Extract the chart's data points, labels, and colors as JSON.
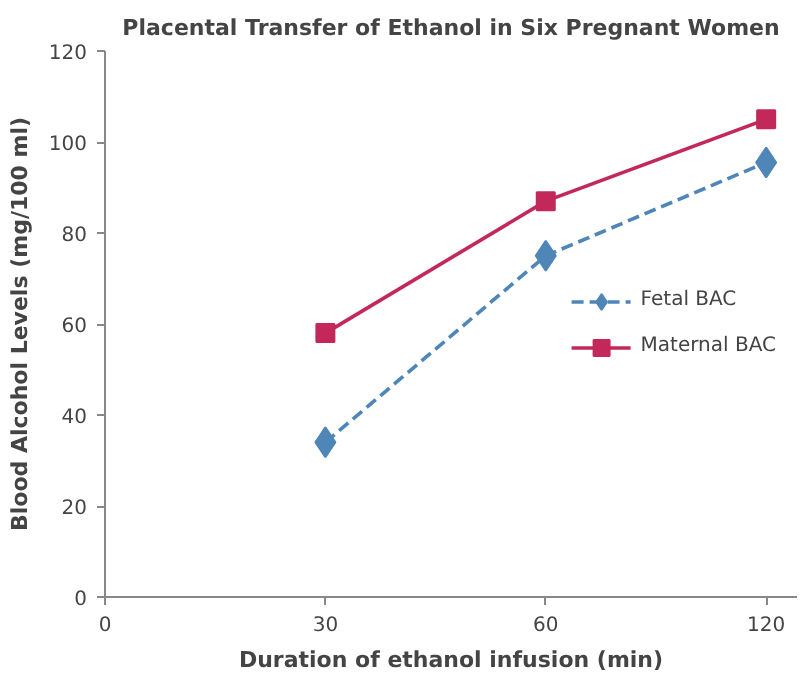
{
  "chart_data": {
    "type": "line",
    "title": "Placental Transfer of Ethanol in Six Pregnant Women",
    "xlabel": "Duration of ethanol infusion (min)",
    "ylabel": "Blood Alcohol Levels (mg/100 ml)",
    "categories": [
      "0",
      "30",
      "60",
      "120"
    ],
    "series": [
      {
        "name": "Fetal BAC",
        "color": "#4f86b8",
        "values": [
          null,
          34,
          75,
          95.5
        ],
        "marker": "diamond",
        "line_style": "dashed"
      },
      {
        "name": "Maternal BAC",
        "color": "#c2285a",
        "values": [
          null,
          58,
          87,
          105
        ],
        "marker": "square",
        "line_style": "solid"
      }
    ],
    "ylim": [
      0,
      120
    ],
    "yticks": [
      0,
      20,
      40,
      60,
      80,
      100,
      120
    ],
    "grid": false,
    "legend": "right"
  }
}
